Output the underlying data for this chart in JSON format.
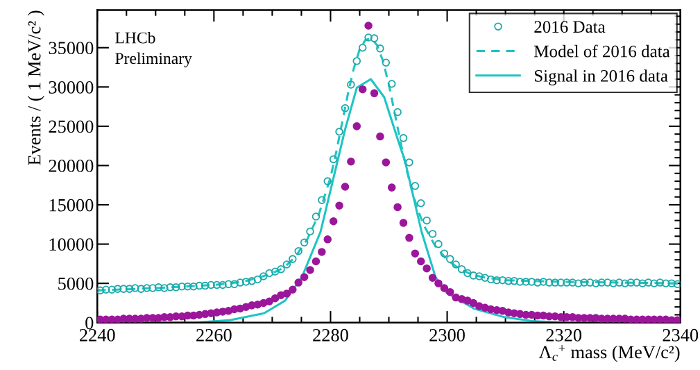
{
  "chart_data": {
    "type": "scatter",
    "xlabel": "Λ$_{c}$$^{+}$ mass (MeV/c²)",
    "ylabel": "Events / ( 1 MeV/c² )",
    "annotations": [
      "LHCb\nPreliminary"
    ],
    "xlim": [
      2240,
      2340
    ],
    "xticks": [
      2240,
      2260,
      2280,
      2300,
      2320,
      2340
    ],
    "ylim": [
      0,
      39800
    ],
    "yticks": [
      0,
      5000,
      10000,
      15000,
      20000,
      25000,
      30000,
      35000
    ],
    "grid": false,
    "legend": "top right",
    "series": [
      {
        "name": "2016 Data",
        "marker": "circle",
        "color": "#1fa9a9",
        "x": [
          2240.5,
          2241.5,
          2242.5,
          2243.5,
          2244.5,
          2245.5,
          2246.5,
          2247.5,
          2248.5,
          2249.5,
          2250.5,
          2251.5,
          2252.5,
          2253.5,
          2254.5,
          2255.5,
          2256.5,
          2257.5,
          2258.5,
          2259.5,
          2260.5,
          2261.5,
          2262.5,
          2263.5,
          2264.5,
          2265.5,
          2266.5,
          2267.5,
          2268.5,
          2269.5,
          2270.5,
          2271.5,
          2272.5,
          2273.5,
          2274.5,
          2275.5,
          2276.5,
          2277.5,
          2278.5,
          2279.5,
          2280.5,
          2281.5,
          2282.5,
          2283.5,
          2284.5,
          2285.5,
          2286.5,
          2287.5,
          2288.5,
          2289.5,
          2290.5,
          2291.5,
          2292.5,
          2293.5,
          2294.5,
          2295.5,
          2296.5,
          2297.5,
          2298.5,
          2299.5,
          2300.5,
          2301.5,
          2302.5,
          2303.5,
          2304.5,
          2305.5,
          2306.5,
          2307.5,
          2308.5,
          2309.5,
          2310.5,
          2311.5,
          2312.5,
          2313.5,
          2314.5,
          2315.5,
          2316.5,
          2317.5,
          2318.5,
          2319.5,
          2320.5,
          2321.5,
          2322.5,
          2323.5,
          2324.5,
          2325.5,
          2326.5,
          2327.5,
          2328.5,
          2329.5,
          2330.5,
          2331.5,
          2332.5,
          2333.5,
          2334.5,
          2335.5,
          2336.5,
          2337.5,
          2338.5,
          2339.5
        ],
        "values": [
          4100,
          4200,
          4200,
          4300,
          4300,
          4300,
          4400,
          4300,
          4400,
          4400,
          4500,
          4400,
          4500,
          4500,
          4600,
          4600,
          4600,
          4700,
          4700,
          4800,
          4800,
          4800,
          4900,
          4900,
          5100,
          5200,
          5300,
          5500,
          5900,
          6300,
          6500,
          6800,
          7400,
          8100,
          9100,
          10200,
          11600,
          13500,
          15600,
          18000,
          20800,
          24300,
          27300,
          30300,
          33300,
          35000,
          36300,
          36200,
          34900,
          33100,
          30400,
          26800,
          23500,
          20400,
          17400,
          15200,
          13000,
          11300,
          10000,
          8800,
          8100,
          7400,
          6800,
          6300,
          6000,
          5900,
          5700,
          5500,
          5400,
          5400,
          5300,
          5300,
          5200,
          5200,
          5200,
          5100,
          5200,
          5100,
          5100,
          5100,
          5100,
          5100,
          5000,
          5100,
          5100,
          5000,
          5100,
          5100,
          5000,
          5100,
          5000,
          5100,
          5100,
          5000,
          5100,
          5000,
          5100,
          5000,
          5000,
          4900
        ]
      },
      {
        "marker": "circle",
        "color": "#9c169c",
        "x": [
          2240.5,
          2241.5,
          2242.5,
          2243.5,
          2244.5,
          2245.5,
          2246.5,
          2247.5,
          2248.5,
          2249.5,
          2250.5,
          2251.5,
          2252.5,
          2253.5,
          2254.5,
          2255.5,
          2256.5,
          2257.5,
          2258.5,
          2259.5,
          2260.5,
          2261.5,
          2262.5,
          2263.5,
          2264.5,
          2265.5,
          2266.5,
          2267.5,
          2268.5,
          2269.5,
          2270.5,
          2271.5,
          2272.5,
          2273.5,
          2274.5,
          2275.5,
          2276.5,
          2277.5,
          2278.5,
          2279.5,
          2280.5,
          2281.5,
          2282.5,
          2283.5,
          2284.5,
          2285.5,
          2286.5,
          2287.5,
          2288.5,
          2289.5,
          2290.5,
          2291.5,
          2292.5,
          2293.5,
          2294.5,
          2295.5,
          2296.5,
          2297.5,
          2298.5,
          2299.5,
          2300.5,
          2301.5,
          2302.5,
          2303.5,
          2304.5,
          2305.5,
          2306.5,
          2307.5,
          2308.5,
          2309.5,
          2310.5,
          2311.5,
          2312.5,
          2313.5,
          2314.5,
          2315.5,
          2316.5,
          2317.5,
          2318.5,
          2319.5,
          2320.5,
          2321.5,
          2322.5,
          2323.5,
          2324.5,
          2325.5,
          2326.5,
          2327.5,
          2328.5,
          2329.5,
          2330.5,
          2331.5,
          2332.5,
          2333.5,
          2334.5,
          2335.5,
          2336.5,
          2337.5,
          2338.5,
          2339.5
        ],
        "values": [
          400,
          400,
          400,
          400,
          500,
          500,
          500,
          500,
          600,
          600,
          600,
          700,
          700,
          800,
          800,
          900,
          900,
          1000,
          1100,
          1200,
          1300,
          1400,
          1500,
          1700,
          1800,
          2000,
          2200,
          2300,
          2500,
          2700,
          3100,
          3500,
          3700,
          4200,
          5100,
          5800,
          6700,
          7800,
          9000,
          10600,
          12900,
          14900,
          17300,
          20500,
          25000,
          29700,
          37800,
          29200,
          23700,
          20400,
          17200,
          14700,
          12700,
          10800,
          8800,
          7800,
          6900,
          5700,
          5000,
          4400,
          3900,
          3200,
          3000,
          2800,
          2500,
          2100,
          1900,
          1700,
          1600,
          1500,
          1300,
          1200,
          1100,
          1000,
          1000,
          900,
          900,
          800,
          800,
          700,
          700,
          700,
          600,
          600,
          600,
          600,
          500,
          500,
          500,
          500,
          500,
          400,
          400,
          400,
          400,
          400,
          400,
          400,
          300,
          300
        ]
      },
      {
        "name": "Model of 2016 data",
        "type": "line",
        "marker": "none",
        "line_style": "dashed",
        "color": "#1fc4c4",
        "x": [
          2240,
          2250,
          2260,
          2265,
          2268,
          2270,
          2272,
          2274,
          2276,
          2278,
          2280,
          2281,
          2282,
          2283,
          2284,
          2285,
          2286,
          2287,
          2288,
          2289,
          2290,
          2291,
          2292,
          2293,
          2294,
          2295,
          2296,
          2298,
          2300,
          2302,
          2304,
          2306,
          2310,
          2320,
          2330,
          2340
        ],
        "values": [
          4100,
          4400,
          4800,
          5200,
          5800,
          6300,
          7000,
          8400,
          10600,
          13800,
          18500,
          21800,
          25500,
          29200,
          32400,
          34800,
          36000,
          36200,
          35300,
          33300,
          30300,
          26700,
          23000,
          19600,
          16700,
          14300,
          12400,
          9700,
          8000,
          6900,
          6200,
          5800,
          5400,
          5200,
          5100,
          5000
        ]
      },
      {
        "name": "Signal in 2016 data",
        "type": "line",
        "marker": "none",
        "line_style": "solid",
        "color": "#1fc4c4",
        "x": [
          2240,
          2256.7,
          2262.6,
          2268.6,
          2272.2,
          2275.1,
          2278.3,
          2280.5,
          2282.5,
          2284.5,
          2286.9,
          2289.2,
          2291.5,
          2292.8,
          2295.6,
          2298,
          2299.9,
          2304.6,
          2309.8,
          2314.6,
          2320,
          2340
        ],
        "values": [
          0,
          0,
          300,
          1200,
          2800,
          5800,
          11600,
          18400,
          24600,
          29900,
          31000,
          28700,
          23400,
          20500,
          11600,
          5800,
          3800,
          1800,
          700,
          200,
          0,
          0
        ]
      }
    ]
  }
}
